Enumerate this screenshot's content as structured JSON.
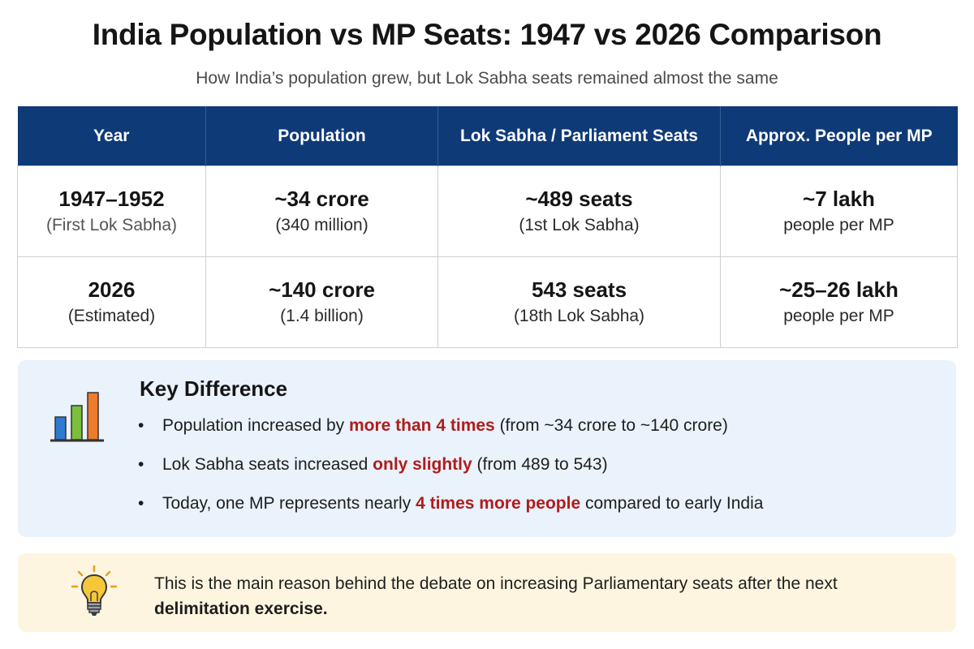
{
  "header": {
    "title": "India Population vs MP Seats: 1947 vs 2026 Comparison",
    "subtitle": "How India’s population grew, but Lok Sabha seats remained almost the same"
  },
  "table": {
    "columns": [
      "Year",
      "Population",
      "Lok Sabha / Parliament Seats",
      "Approx. People per MP"
    ],
    "rows": [
      {
        "year": "1947–1952",
        "year_note": "(First Lok Sabha)",
        "population": "~34 crore",
        "population_note": "(340 million)",
        "seats": "~489 seats",
        "seats_note": "(1st Lok Sabha)",
        "per_mp": "~7 lakh",
        "per_mp_note": "people per MP"
      },
      {
        "year": "2026",
        "year_note": "(Estimated)",
        "population": "~140 crore",
        "population_note": "(1.4 billion)",
        "seats": "543 seats",
        "seats_note": "(18th Lok Sabha)",
        "per_mp": "~25–26 lakh",
        "per_mp_note": "people per MP"
      }
    ]
  },
  "key_difference": {
    "title": "Key Difference",
    "icon": "bar-chart-icon",
    "bullet_symbol": "•",
    "items": [
      {
        "before": "Population increased by ",
        "highlight": "more than 4 times",
        "after": " (from ~34 crore to ~140 crore)"
      },
      {
        "before": "Lok Sabha seats increased ",
        "highlight": "only slightly",
        "after": " (from 489 to 543)"
      },
      {
        "before": "Today, one MP represents nearly ",
        "highlight": "4 times more people",
        "after": " compared to early India"
      }
    ]
  },
  "note": {
    "icon": "lightbulb-icon",
    "text": "This is the main reason behind the debate on increasing Parliamentary seats after the next ",
    "bold": "delimitation exercise."
  },
  "colors": {
    "header_bg": "#0f3a78",
    "highlight": "#b01c1c",
    "key_box_bg": "#eaf2fb",
    "note_box_bg": "#fdf5e0",
    "icon_blue": "#2f7ad1",
    "icon_green": "#7bbf3b",
    "icon_orange": "#ef7b2c",
    "bulb_yellow": "#f7c73a"
  }
}
